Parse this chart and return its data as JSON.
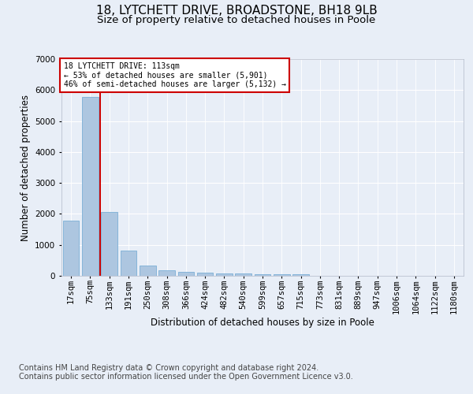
{
  "title": "18, LYTCHETT DRIVE, BROADSTONE, BH18 9LB",
  "subtitle": "Size of property relative to detached houses in Poole",
  "xlabel": "Distribution of detached houses by size in Poole",
  "ylabel": "Number of detached properties",
  "footer_line1": "Contains HM Land Registry data © Crown copyright and database right 2024.",
  "footer_line2": "Contains public sector information licensed under the Open Government Licence v3.0.",
  "bar_labels": [
    "17sqm",
    "75sqm",
    "133sqm",
    "191sqm",
    "250sqm",
    "308sqm",
    "366sqm",
    "424sqm",
    "482sqm",
    "540sqm",
    "599sqm",
    "657sqm",
    "715sqm",
    "773sqm",
    "831sqm",
    "889sqm",
    "947sqm",
    "1006sqm",
    "1064sqm",
    "1122sqm",
    "1180sqm"
  ],
  "bar_values": [
    1780,
    5780,
    2060,
    820,
    340,
    185,
    115,
    95,
    80,
    70,
    55,
    50,
    45,
    0,
    0,
    0,
    0,
    0,
    0,
    0,
    0
  ],
  "bar_color": "#adc6e0",
  "bar_edge_color": "#7aaed6",
  "vline_x": 1.5,
  "vline_color": "#cc0000",
  "property_size": "113sqm",
  "property_name": "18 LYTCHETT DRIVE",
  "pct_smaller": "53%",
  "n_smaller": "5,901",
  "pct_larger_semi": "46%",
  "n_larger_semi": "5,132",
  "annotation_box_color": "#cc0000",
  "ylim": [
    0,
    7000
  ],
  "yticks": [
    0,
    1000,
    2000,
    3000,
    4000,
    5000,
    6000,
    7000
  ],
  "background_color": "#e8eef7",
  "plot_bg_color": "#e8eef7",
  "grid_color": "#ffffff",
  "title_fontsize": 11,
  "subtitle_fontsize": 9.5,
  "axis_label_fontsize": 8.5,
  "tick_fontsize": 7.5,
  "footer_fontsize": 7
}
